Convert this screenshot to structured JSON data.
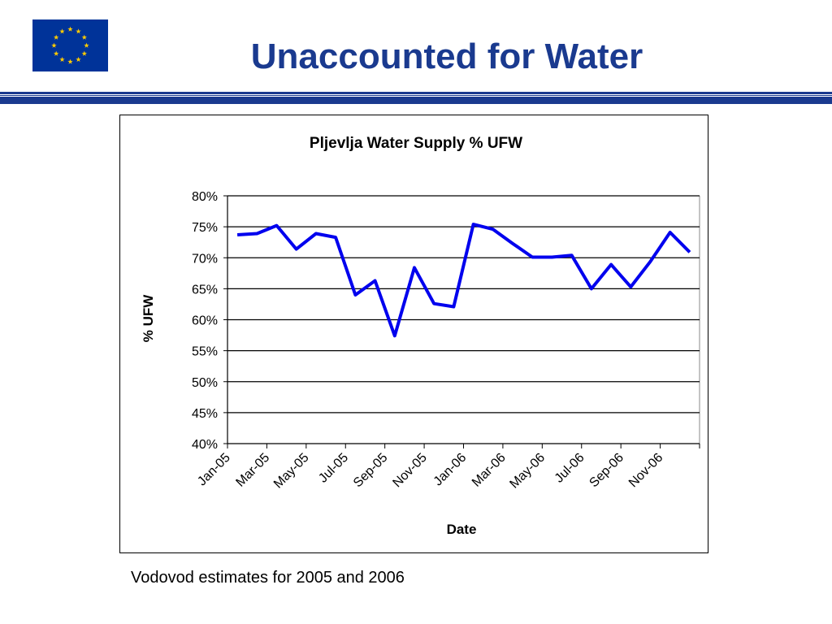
{
  "slide": {
    "title": "Unaccounted for Water",
    "caption": "Vodovod estimates for 2005 and 2006"
  },
  "colors": {
    "title": "#1a3a8f",
    "rule": "#1a3a8f",
    "eu_blue": "#003399",
    "eu_star": "#ffcc00",
    "series": "#0000ee"
  },
  "chart_data": {
    "type": "line",
    "title": "Pljevlja Water Supply % UFW",
    "xlabel": "Date",
    "ylabel": "% UFW",
    "ylim": [
      0.4,
      0.8
    ],
    "ytick_values": [
      0.4,
      0.45,
      0.5,
      0.55,
      0.6,
      0.65,
      0.7,
      0.75,
      0.8
    ],
    "ytick_labels": [
      "40%",
      "45%",
      "50%",
      "55%",
      "60%",
      "65%",
      "70%",
      "75%",
      "80%"
    ],
    "xtick_labels": [
      "Jan-05",
      "Mar-05",
      "May-05",
      "Jul-05",
      "Sep-05",
      "Nov-05",
      "Jan-06",
      "Mar-06",
      "May-06",
      "Jul-06",
      "Sep-06",
      "Nov-06"
    ],
    "grid": "horizontal",
    "series": [
      {
        "x": [
          "Jan-05",
          "Feb-05",
          "Mar-05",
          "Apr-05",
          "May-05",
          "Jun-05",
          "Jul-05",
          "Aug-05",
          "Sep-05",
          "Oct-05",
          "Nov-05",
          "Dec-05",
          "Jan-06",
          "Feb-06",
          "Mar-06",
          "Apr-06",
          "May-06",
          "Jun-06",
          "Jul-06",
          "Aug-06",
          "Sep-06",
          "Oct-06",
          "Nov-06",
          "Dec-06"
        ],
        "values": [
          0.737,
          0.739,
          0.752,
          0.714,
          0.739,
          0.733,
          0.64,
          0.663,
          0.574,
          0.684,
          0.626,
          0.621,
          0.754,
          0.746,
          0.723,
          0.701,
          0.701,
          0.704,
          0.65,
          0.689,
          0.653,
          0.694,
          0.741,
          0.709
        ]
      }
    ]
  }
}
